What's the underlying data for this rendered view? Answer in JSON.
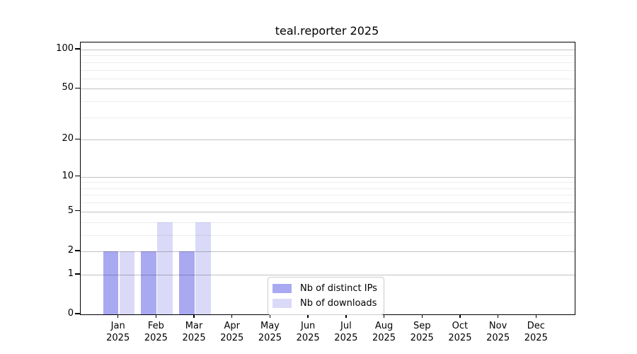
{
  "chart_data": {
    "type": "bar",
    "title": "teal.reporter 2025",
    "categories": [
      "Jan",
      "Feb",
      "Mar",
      "Apr",
      "May",
      "Jun",
      "Jul",
      "Aug",
      "Sep",
      "Oct",
      "Nov",
      "Dec"
    ],
    "x_tick_year": "2025",
    "series": [
      {
        "name": "Nb of distinct IPs",
        "color": "#a9a9f2",
        "values": [
          2,
          2,
          2,
          0,
          0,
          0,
          0,
          0,
          0,
          0,
          0,
          0
        ]
      },
      {
        "name": "Nb of downloads",
        "color": "#dadaf8",
        "values": [
          2,
          4,
          4,
          0,
          0,
          0,
          0,
          0,
          0,
          0,
          0,
          0
        ]
      }
    ],
    "yscale": "log1p",
    "ylim": [
      0,
      112
    ],
    "yticks_major": [
      0,
      1,
      2,
      5,
      10,
      20,
      50,
      100
    ],
    "yticks_minor": [
      3,
      4,
      6,
      7,
      8,
      9,
      30,
      40,
      60,
      70,
      80,
      90
    ],
    "xlabel": "",
    "ylabel": "",
    "grid": "horizontal, major and minor, drawn over bars",
    "legend_position": "inside lower-center"
  },
  "colors": {
    "background": "#ffffff",
    "spine": "#000000",
    "text": "#000000",
    "grid_major": "#c2c2c2",
    "grid_minor": "#ededed",
    "series_ips": "#a9a9f2",
    "series_downloads": "#dadaf8"
  }
}
